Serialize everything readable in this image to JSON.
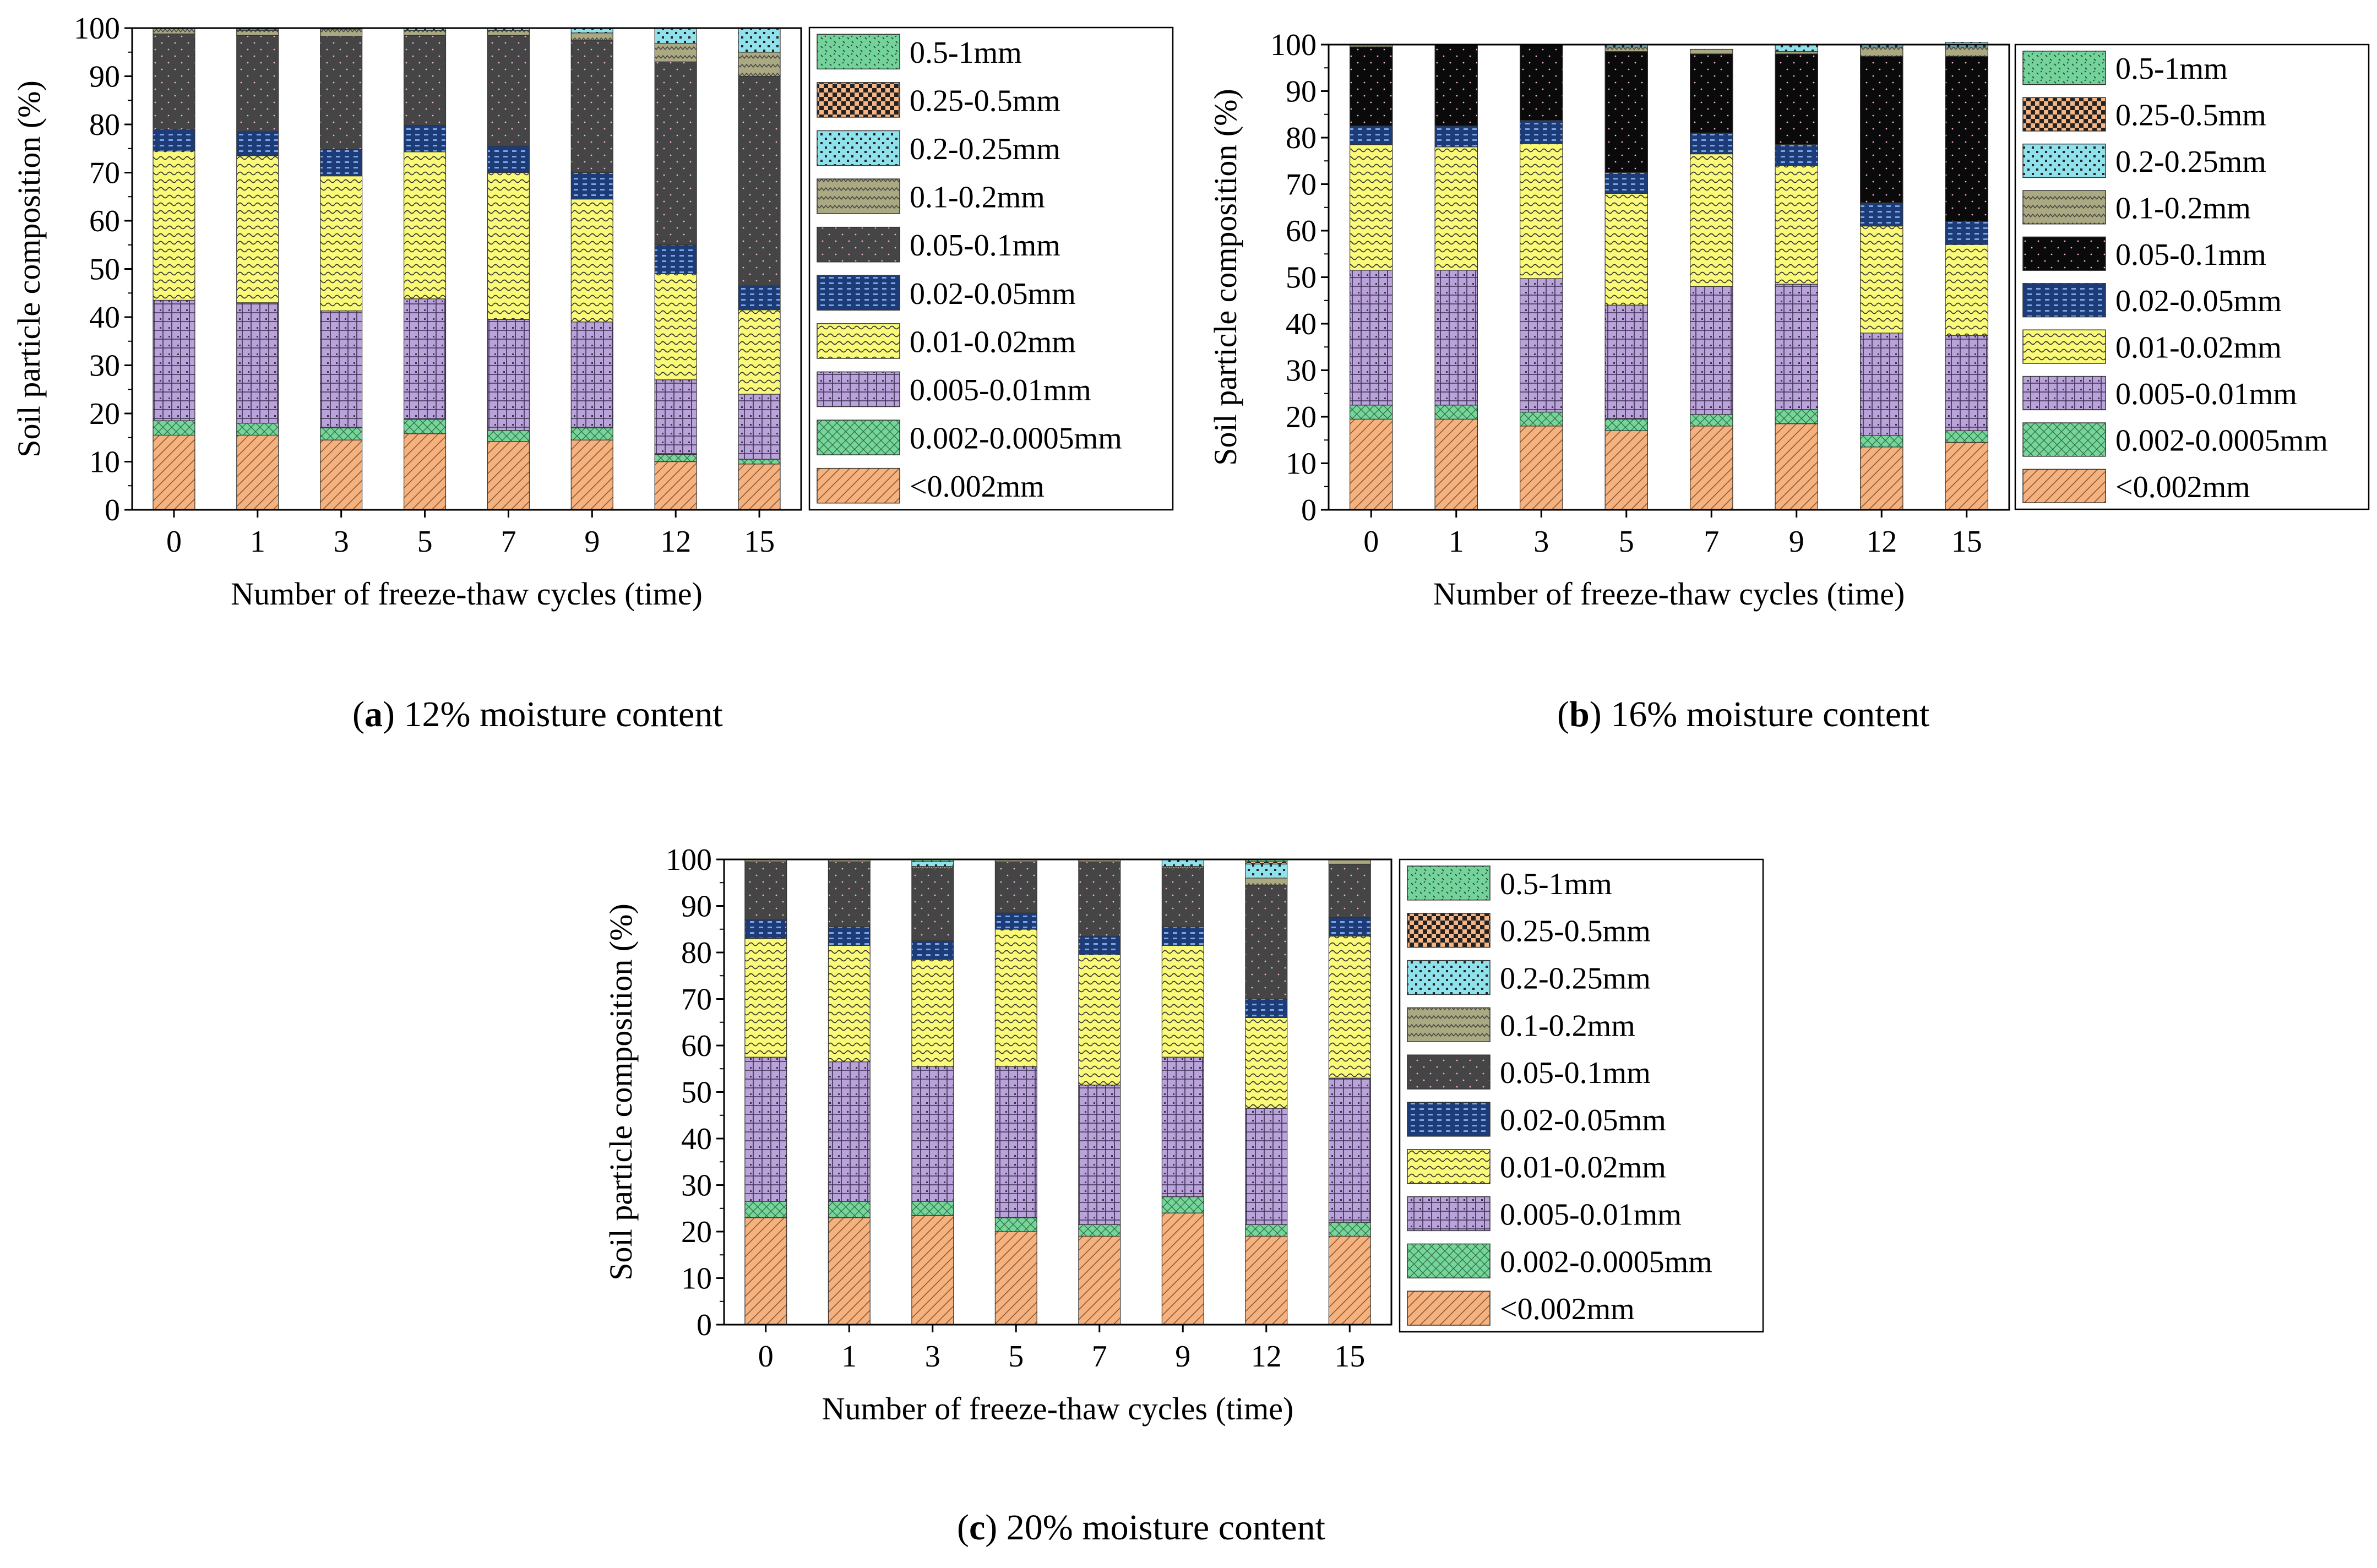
{
  "figure": {
    "colors": {
      "lt0002": "#f6b27e",
      "c0002_00005": "#76d69a",
      "c0005_001": "#b9a3d9",
      "c001_002": "#fafa78",
      "c002_005": "#1d3c77",
      "c005_01_panel_a": "#454545",
      "c005_01_panel_b": "#0a0a0a",
      "c005_01_panel_c": "#454545",
      "c01_02": "#aaa982",
      "c02_025": "#8fe2ec",
      "c025_05": "#f5b585",
      "c05_1": "#73d39b"
    }
  },
  "chart_data": [
    {
      "id": "a",
      "type": "bar",
      "stacked": true,
      "caption_letter": "a",
      "caption_text": "12% moisture content",
      "xlabel": "Number of freeze-thaw cycles (time)",
      "ylabel": "Soil particle composition (%)",
      "ylim": [
        0,
        100
      ],
      "yticks": [
        "0",
        "10",
        "20",
        "30",
        "40",
        "50",
        "60",
        "70",
        "80",
        "90",
        "100"
      ],
      "categories": [
        "0",
        "1",
        "3",
        "5",
        "7",
        "9",
        "12",
        "15"
      ],
      "series": [
        {
          "name": "<0.002mm",
          "key": "lt0002",
          "values": [
            15.5,
            15.5,
            14.5,
            15.8,
            14.2,
            14.5,
            10.0,
            9.5
          ]
        },
        {
          "name": "0.002-0.0005mm",
          "key": "c0002_00005",
          "values": [
            3.0,
            2.5,
            2.5,
            3.0,
            2.3,
            2.5,
            1.5,
            1.0
          ]
        },
        {
          "name": "0.005-0.01mm",
          "key": "c0005_001",
          "values": [
            25.0,
            25.0,
            24.3,
            25.0,
            23.0,
            22.0,
            15.5,
            13.5
          ]
        },
        {
          "name": "0.01-0.02mm",
          "key": "c001_002",
          "values": [
            31.0,
            30.5,
            28.0,
            30.5,
            30.5,
            25.5,
            22.0,
            17.5
          ]
        },
        {
          "name": "0.02-0.05mm",
          "key": "c002_005",
          "values": [
            4.5,
            5.0,
            5.5,
            5.5,
            5.5,
            5.5,
            6.0,
            5.0
          ]
        },
        {
          "name": "0.05-0.1mm",
          "key": "c005_01_panel_a",
          "values": [
            19.8,
            20.0,
            23.5,
            18.7,
            23.0,
            27.5,
            38.0,
            43.5
          ]
        },
        {
          "name": "0.1-0.2mm",
          "key": "c01_02",
          "values": [
            1.2,
            1.0,
            1.5,
            1.0,
            1.0,
            1.5,
            3.8,
            5.0
          ]
        },
        {
          "name": "0.2-0.25mm",
          "key": "c02_025",
          "values": [
            0.0,
            0.3,
            0.2,
            0.5,
            0.5,
            1.0,
            3.2,
            5.0
          ]
        },
        {
          "name": "0.25-0.5mm",
          "key": "c025_05",
          "values": [
            0,
            0,
            0,
            0,
            0,
            0,
            0,
            0
          ]
        },
        {
          "name": "0.5-1mm",
          "key": "c05_1",
          "values": [
            0,
            0.2,
            0,
            0,
            0,
            0,
            0,
            0
          ]
        }
      ]
    },
    {
      "id": "b",
      "type": "bar",
      "stacked": true,
      "caption_letter": "b",
      "caption_text": "16% moisture content",
      "xlabel": "Number of freeze-thaw cycles (time)",
      "ylabel": "Soil particle composition (%)",
      "ylim": [
        0,
        100
      ],
      "yticks": [
        "0",
        "10",
        "20",
        "30",
        "40",
        "50",
        "60",
        "70",
        "80",
        "90",
        "100"
      ],
      "categories": [
        "0",
        "1",
        "3",
        "5",
        "7",
        "9",
        "12",
        "15"
      ],
      "series": [
        {
          "name": "<0.002mm",
          "key": "lt0002",
          "values": [
            19.5,
            19.5,
            18.0,
            17.0,
            18.0,
            18.5,
            13.5,
            14.5
          ]
        },
        {
          "name": "0.002-0.0005mm",
          "key": "c0002_00005",
          "values": [
            3.0,
            3.0,
            3.0,
            2.5,
            2.5,
            3.0,
            2.5,
            2.5
          ]
        },
        {
          "name": "0.005-0.01mm",
          "key": "c0005_001",
          "values": [
            29.0,
            29.0,
            28.7,
            24.5,
            27.5,
            27.0,
            22.0,
            20.5
          ]
        },
        {
          "name": "0.01-0.02mm",
          "key": "c001_002",
          "values": [
            27.0,
            26.5,
            29.0,
            24.0,
            28.5,
            25.5,
            23.0,
            19.5
          ]
        },
        {
          "name": "0.02-0.05mm",
          "key": "c002_005",
          "values": [
            4.0,
            4.5,
            5.0,
            4.5,
            4.5,
            4.5,
            5.0,
            5.0
          ]
        },
        {
          "name": "0.05-0.1mm",
          "key": "c005_01_panel_b",
          "values": [
            17.0,
            17.5,
            16.3,
            26.0,
            17.0,
            19.5,
            31.5,
            35.5
          ]
        },
        {
          "name": "0.1-0.2mm",
          "key": "c01_02",
          "values": [
            0.5,
            0,
            0,
            1.0,
            1.0,
            0.5,
            2.0,
            2.0
          ]
        },
        {
          "name": "0.2-0.25mm",
          "key": "c02_025",
          "values": [
            0,
            0,
            0,
            0.5,
            0,
            1.5,
            0.5,
            1.0
          ]
        },
        {
          "name": "0.25-0.5mm",
          "key": "c025_05",
          "values": [
            0,
            0,
            0,
            0,
            0,
            0,
            0,
            0
          ]
        },
        {
          "name": "0.5-1mm",
          "key": "c05_1",
          "values": [
            0,
            0,
            0,
            0,
            0,
            0,
            0,
            0
          ]
        }
      ]
    },
    {
      "id": "c",
      "type": "bar",
      "stacked": true,
      "caption_letter": "c",
      "caption_text": "20% moisture content",
      "xlabel": "Number of freeze-thaw cycles (time)",
      "ylabel": "Soil particle composition (%)",
      "ylim": [
        0,
        100
      ],
      "yticks": [
        "0",
        "10",
        "20",
        "30",
        "40",
        "50",
        "60",
        "70",
        "80",
        "90",
        "100"
      ],
      "categories": [
        "0",
        "1",
        "3",
        "5",
        "7",
        "9",
        "12",
        "15"
      ],
      "series": [
        {
          "name": "<0.002mm",
          "key": "lt0002",
          "values": [
            23.0,
            23.0,
            23.5,
            20.0,
            19.0,
            24.0,
            19.0,
            19.0
          ]
        },
        {
          "name": "0.002-0.0005mm",
          "key": "c0002_00005",
          "values": [
            3.5,
            3.5,
            3.0,
            3.0,
            2.5,
            3.5,
            2.5,
            3.0
          ]
        },
        {
          "name": "0.005-0.01mm",
          "key": "c0005_001",
          "values": [
            31.0,
            30.0,
            29.0,
            32.5,
            30.0,
            30.0,
            25.0,
            31.0
          ]
        },
        {
          "name": "0.01-0.02mm",
          "key": "c001_002",
          "values": [
            25.5,
            25.0,
            23.0,
            29.5,
            28.0,
            24.0,
            19.5,
            30.5
          ]
        },
        {
          "name": "0.02-0.05mm",
          "key": "c002_005",
          "values": [
            4.0,
            4.0,
            4.0,
            3.5,
            4.0,
            4.0,
            4.0,
            4.0
          ]
        },
        {
          "name": "0.05-0.1mm",
          "key": "c005_01_panel_c",
          "values": [
            12.5,
            14.0,
            15.5,
            11.0,
            16.0,
            12.5,
            24.5,
            11.5
          ]
        },
        {
          "name": "0.1-0.2mm",
          "key": "c01_02",
          "values": [
            0.5,
            0.5,
            0.5,
            0.5,
            0.5,
            0.5,
            1.5,
            1.0
          ]
        },
        {
          "name": "0.2-0.25mm",
          "key": "c02_025",
          "values": [
            0,
            0,
            1.0,
            0,
            0,
            1.5,
            3.0,
            0
          ]
        },
        {
          "name": "0.25-0.5mm",
          "key": "c025_05",
          "values": [
            0,
            0,
            0,
            0,
            0,
            0,
            0.5,
            0
          ]
        },
        {
          "name": "0.5-1mm",
          "key": "c05_1",
          "values": [
            0,
            0,
            0.5,
            0,
            0,
            0,
            0.5,
            0
          ]
        }
      ]
    }
  ]
}
